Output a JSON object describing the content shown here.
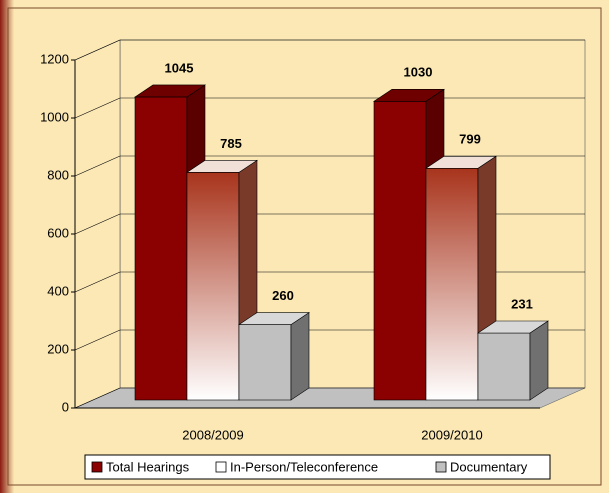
{
  "chart_data": {
    "type": "bar3d",
    "categories": [
      "2008/2009",
      "2009/2010"
    ],
    "series": [
      {
        "name": "Total Hearings",
        "color": "#8b0000",
        "values": [
          1045,
          1030
        ]
      },
      {
        "name": "In-Person/Teleconference",
        "color": "#a8341c",
        "values": [
          785,
          799
        ]
      },
      {
        "name": "Documentary",
        "color": "#c0c0c0",
        "values": [
          260,
          231
        ]
      }
    ],
    "ylim": [
      0,
      1200
    ],
    "yticks": [
      0,
      200,
      400,
      600,
      800,
      1000,
      1200
    ],
    "grid": true,
    "legend": "bottom"
  }
}
